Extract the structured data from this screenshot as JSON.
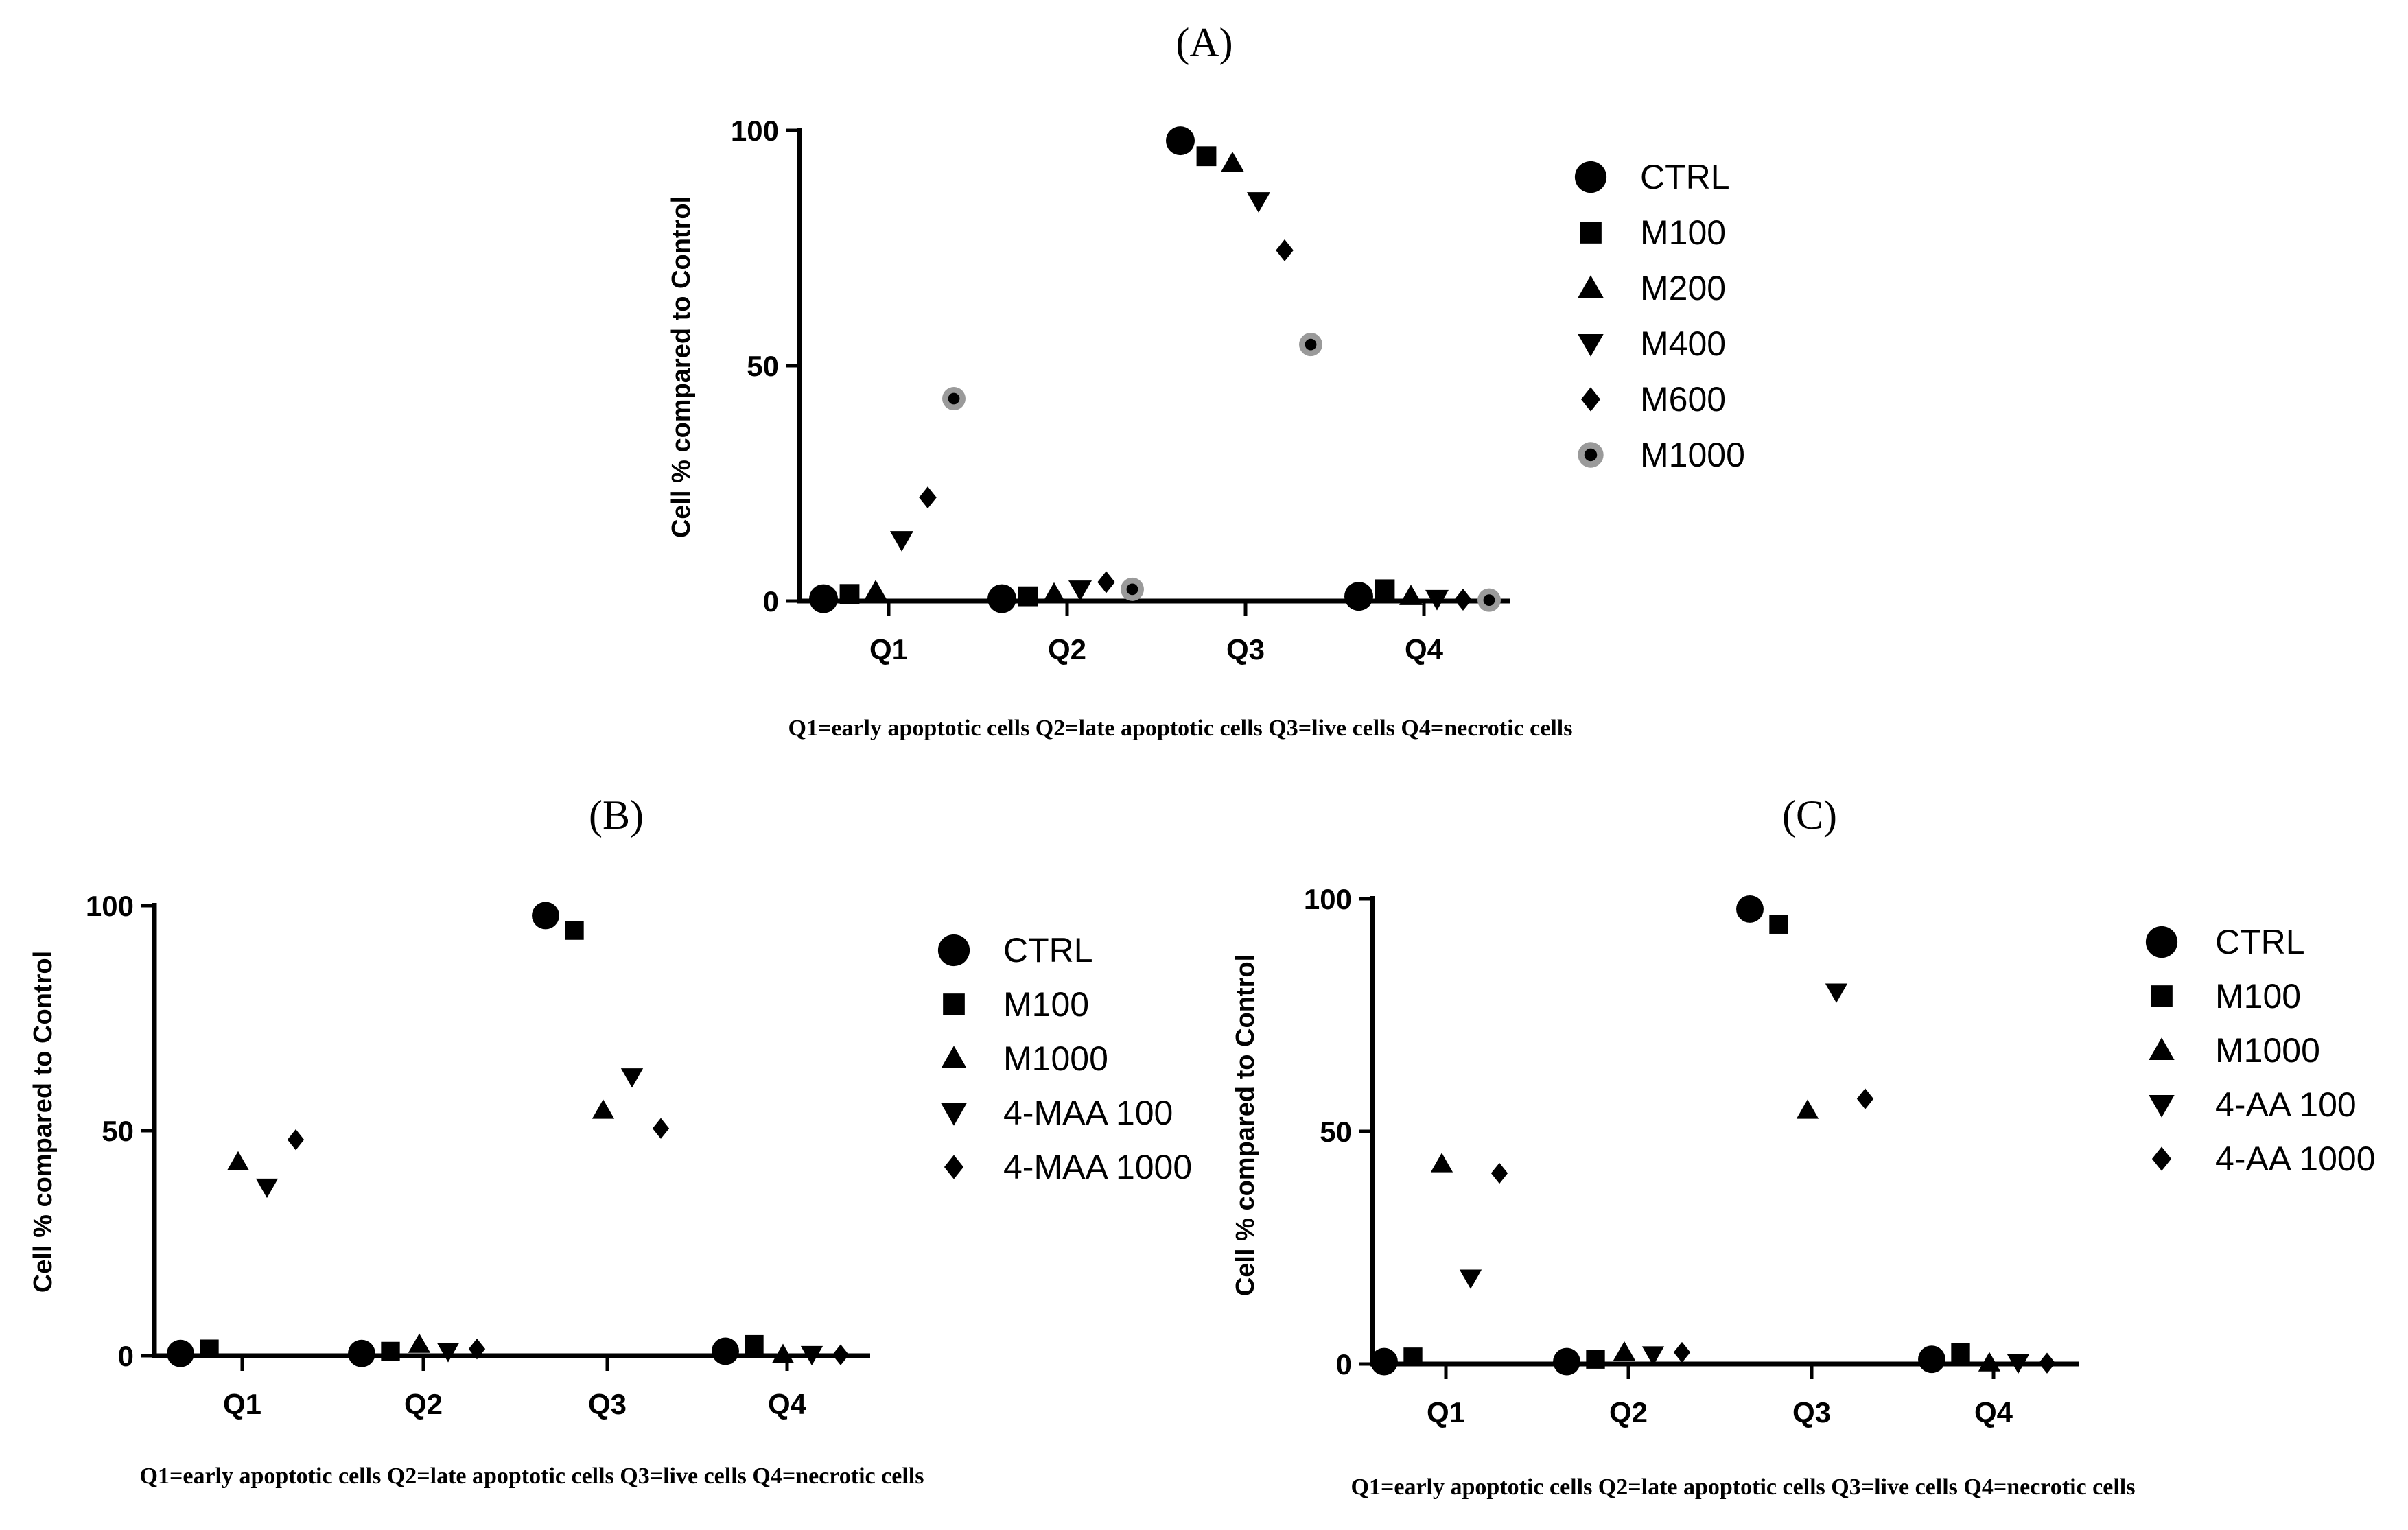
{
  "figure": {
    "caption": "Q1=early apoptotic cells Q2=late apoptotic cells Q3=live cells Q4=necrotic cells"
  },
  "chart_data": [
    {
      "panel": "(A)",
      "type": "scatter",
      "ylabel": "Cell % compared to Control",
      "xlabel": "Q1=early apoptotic cells Q2=late apoptotic cells Q3=live cells Q4=necrotic cells",
      "categories": [
        "Q1",
        "Q2",
        "Q3",
        "Q4"
      ],
      "ylim": [
        0,
        100
      ],
      "yticks": [
        "0",
        "50",
        "100"
      ],
      "legend_position": "right",
      "series": [
        {
          "name": "CTRL",
          "marker": "circle-large",
          "values": [
            0.5,
            0.5,
            97.8,
            1.0
          ]
        },
        {
          "name": "M100",
          "marker": "square",
          "values": [
            1.5,
            1.0,
            94.5,
            2.5
          ]
        },
        {
          "name": "M200",
          "marker": "triangle-up",
          "values": [
            2.0,
            1.5,
            93.0,
            1.0
          ]
        },
        {
          "name": "M400",
          "marker": "triangle-down",
          "values": [
            13.0,
            2.5,
            85.0,
            0.5
          ]
        },
        {
          "name": "M600",
          "marker": "diamond",
          "values": [
            22.0,
            4.0,
            74.5,
            0.3
          ]
        },
        {
          "name": "M1000",
          "marker": "circle-gray",
          "values": [
            43.0,
            2.5,
            54.5,
            0.2
          ]
        }
      ]
    },
    {
      "panel": "(B)",
      "type": "scatter",
      "ylabel": "Cell % compared to Control",
      "xlabel": "Q1=early apoptotic cells Q2=late apoptotic cells Q3=live cells Q4=necrotic cells",
      "categories": [
        "Q1",
        "Q2",
        "Q3",
        "Q4"
      ],
      "ylim": [
        0,
        100
      ],
      "yticks": [
        "0",
        "50",
        "100"
      ],
      "legend_position": "right",
      "series": [
        {
          "name": "CTRL",
          "marker": "circle-large",
          "values": [
            0.5,
            0.5,
            97.8,
            1.0
          ]
        },
        {
          "name": "M100",
          "marker": "square",
          "values": [
            1.5,
            1.0,
            94.5,
            2.5
          ]
        },
        {
          "name": "M1000",
          "marker": "triangle-up",
          "values": [
            43.0,
            2.5,
            54.5,
            0.2
          ]
        },
        {
          "name": "4-MAA 100",
          "marker": "triangle-down",
          "values": [
            37.5,
            1.0,
            62.0,
            0.3
          ]
        },
        {
          "name": "4-MAA 1000",
          "marker": "diamond",
          "values": [
            48.0,
            1.5,
            50.5,
            0.2
          ]
        }
      ]
    },
    {
      "panel": "(C)",
      "type": "scatter",
      "ylabel": "Cell % compared to Control",
      "xlabel": "Q1=early apoptotic cells Q2=late apoptotic cells Q3=live cells Q4=necrotic cells",
      "categories": [
        "Q1",
        "Q2",
        "Q3",
        "Q4"
      ],
      "ylim": [
        0,
        100
      ],
      "yticks": [
        "0",
        "50",
        "100"
      ],
      "legend_position": "right",
      "series": [
        {
          "name": "CTRL",
          "marker": "circle-large",
          "values": [
            0.5,
            0.5,
            97.8,
            1.0
          ]
        },
        {
          "name": "M100",
          "marker": "square",
          "values": [
            1.5,
            1.0,
            94.5,
            2.5
          ]
        },
        {
          "name": "M1000",
          "marker": "triangle-up",
          "values": [
            43.0,
            2.5,
            54.5,
            0.2
          ]
        },
        {
          "name": "4-AA 100",
          "marker": "triangle-down",
          "values": [
            18.5,
            2.0,
            80.0,
            0.3
          ]
        },
        {
          "name": "4-AA 1000",
          "marker": "diamond",
          "values": [
            41.0,
            2.5,
            57.0,
            0.2
          ]
        }
      ]
    }
  ]
}
